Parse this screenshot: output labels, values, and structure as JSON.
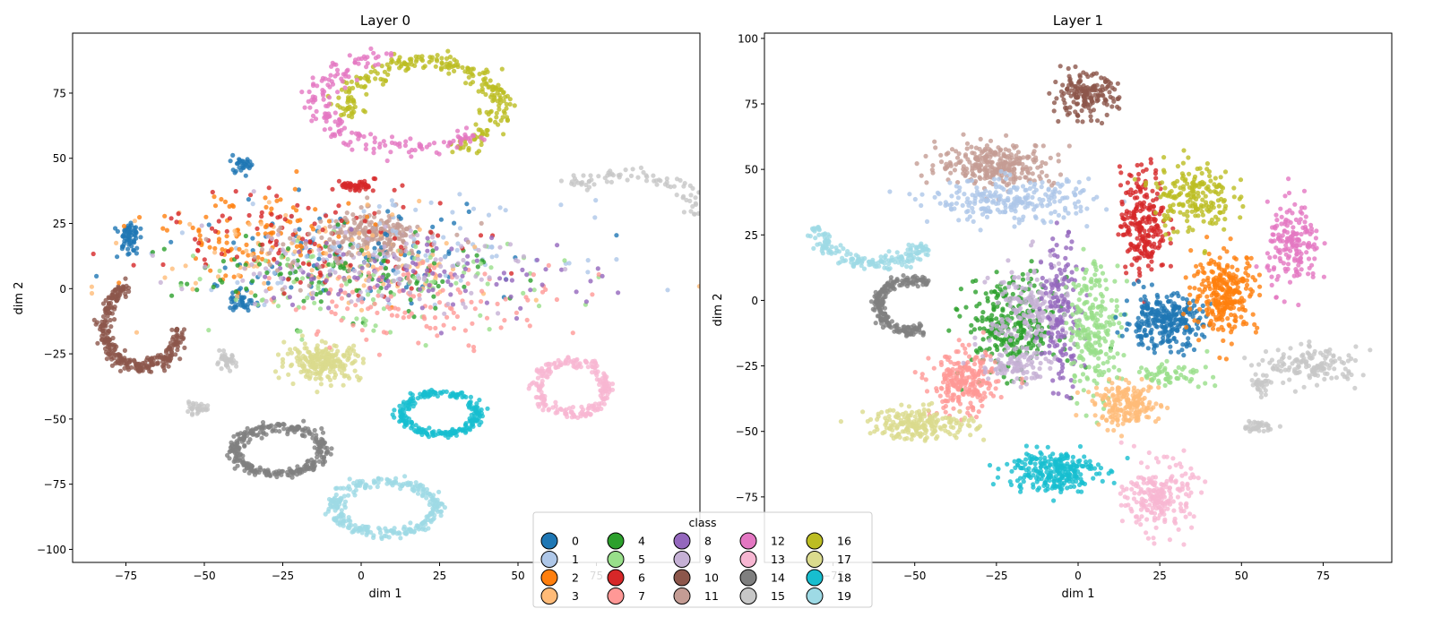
{
  "chart_data": [
    {
      "type": "scatter",
      "title": "Layer 0",
      "xlabel": "dim 1",
      "ylabel": "dim 2",
      "xlim": [
        -92,
        108
      ],
      "ylim": [
        -105,
        98
      ],
      "xticks": [
        -75,
        -50,
        -25,
        0,
        25,
        50,
        75
      ],
      "yticks": [
        -100,
        -75,
        -50,
        -25,
        0,
        25,
        50,
        75
      ],
      "grid": false,
      "legend": "shared, bottom-center",
      "clusters": [
        {
          "class": 10,
          "shape": "arc",
          "cx": -70,
          "cy": -14,
          "rx": 12,
          "ry": 16,
          "a0": 110,
          "a1": 355,
          "n": 300
        },
        {
          "class": 16,
          "shape": "arc",
          "cx": 20,
          "cy": 70,
          "rx": 24,
          "ry": 17,
          "a0": 290,
          "a1": 560,
          "n": 260
        },
        {
          "class": 12,
          "shape": "arc",
          "cx": 15,
          "cy": 72,
          "rx": 28,
          "ry": 18,
          "a0": 100,
          "a1": 320,
          "n": 180
        },
        {
          "class": 15,
          "shape": "arc",
          "cx": 84,
          "cy": 30,
          "rx": 22,
          "ry": 14,
          "a0": -10,
          "a1": 140,
          "n": 80
        },
        {
          "class": 15,
          "shape": "blob",
          "cx": -43,
          "cy": -28,
          "rx": 3,
          "ry": 3,
          "n": 40
        },
        {
          "class": 15,
          "shape": "blob",
          "cx": -53,
          "cy": -46,
          "rx": 4,
          "ry": 2,
          "n": 30
        },
        {
          "class": 17,
          "shape": "blob",
          "cx": -12,
          "cy": -28,
          "rx": 12,
          "ry": 7,
          "n": 230
        },
        {
          "class": 18,
          "shape": "arc",
          "cx": 25,
          "cy": -48,
          "rx": 12,
          "ry": 8,
          "a0": 0,
          "a1": 360,
          "n": 230
        },
        {
          "class": 13,
          "shape": "arc",
          "cx": 67,
          "cy": -38,
          "rx": 11,
          "ry": 10,
          "a0": 0,
          "a1": 360,
          "n": 220
        },
        {
          "class": 14,
          "shape": "arc",
          "cx": -26,
          "cy": -62,
          "rx": 14,
          "ry": 9,
          "a0": 0,
          "a1": 360,
          "n": 300
        },
        {
          "class": 19,
          "shape": "arc",
          "cx": 8,
          "cy": -84,
          "rx": 16,
          "ry": 10,
          "a0": 0,
          "a1": 360,
          "n": 280
        },
        {
          "class": 0,
          "shape": "blob",
          "cx": -74,
          "cy": 20,
          "rx": 3,
          "ry": 7,
          "n": 60
        },
        {
          "class": 0,
          "shape": "blob",
          "cx": -38,
          "cy": -5,
          "rx": 4,
          "ry": 5,
          "n": 40
        },
        {
          "class": 0,
          "shape": "blob",
          "cx": -38,
          "cy": 48,
          "rx": 4,
          "ry": 3,
          "n": 30
        },
        {
          "class": 6,
          "shape": "blob",
          "cx": -2,
          "cy": 39,
          "rx": 5,
          "ry": 2,
          "n": 45
        },
        {
          "class": 11,
          "shape": "blob",
          "cx": 5,
          "cy": 20,
          "rx": 15,
          "ry": 9,
          "n": 200
        },
        {
          "class": 0,
          "shape": "blob",
          "cx": -5,
          "cy": 15,
          "rx": 58,
          "ry": 18,
          "n": 90
        },
        {
          "class": 1,
          "shape": "blob",
          "cx": 10,
          "cy": 15,
          "rx": 55,
          "ry": 18,
          "n": 110
        },
        {
          "class": 2,
          "shape": "blob",
          "cx": -35,
          "cy": 20,
          "rx": 35,
          "ry": 18,
          "n": 110
        },
        {
          "class": 3,
          "shape": "blob",
          "cx": -10,
          "cy": 10,
          "rx": 55,
          "ry": 20,
          "n": 120
        },
        {
          "class": 4,
          "shape": "blob",
          "cx": -10,
          "cy": 5,
          "rx": 50,
          "ry": 15,
          "n": 110
        },
        {
          "class": 5,
          "shape": "blob",
          "cx": 5,
          "cy": 0,
          "rx": 55,
          "ry": 18,
          "n": 100
        },
        {
          "class": 6,
          "shape": "blob",
          "cx": -15,
          "cy": 20,
          "rx": 55,
          "ry": 20,
          "n": 110
        },
        {
          "class": 7,
          "shape": "blob",
          "cx": 20,
          "cy": -5,
          "rx": 45,
          "ry": 15,
          "n": 130
        },
        {
          "class": 8,
          "shape": "blob",
          "cx": 20,
          "cy": 5,
          "rx": 55,
          "ry": 15,
          "n": 100
        },
        {
          "class": 9,
          "shape": "blob",
          "cx": 0,
          "cy": 10,
          "rx": 55,
          "ry": 18,
          "n": 110
        },
        {
          "class": 11,
          "shape": "blob",
          "cx": -10,
          "cy": 15,
          "rx": 40,
          "ry": 15,
          "n": 50
        }
      ]
    },
    {
      "type": "scatter",
      "title": "Layer 1",
      "xlabel": "dim 1",
      "ylabel": "dim 2",
      "xlim": [
        -96,
        96
      ],
      "ylim": [
        -100,
        102
      ],
      "xticks": [
        -75,
        -50,
        -25,
        0,
        25,
        50,
        75
      ],
      "yticks": [
        -75,
        -50,
        -25,
        0,
        25,
        50,
        75,
        100
      ],
      "grid": false,
      "legend": "shared, bottom-center",
      "clusters": [
        {
          "class": 10,
          "shape": "blob",
          "cx": 2,
          "cy": 78,
          "rx": 10,
          "ry": 8,
          "n": 170
        },
        {
          "class": 11,
          "shape": "blob",
          "cx": -25,
          "cy": 52,
          "rx": 18,
          "ry": 8,
          "n": 280
        },
        {
          "class": 1,
          "shape": "blob",
          "cx": -20,
          "cy": 38,
          "rx": 25,
          "ry": 8,
          "n": 240
        },
        {
          "class": 19,
          "shape": "arc",
          "cx": -62,
          "cy": 28,
          "rx": 18,
          "ry": 14,
          "a0": 180,
          "a1": 330,
          "n": 170
        },
        {
          "class": 6,
          "shape": "blob",
          "cx": 20,
          "cy": 30,
          "rx": 7,
          "ry": 20,
          "n": 230
        },
        {
          "class": 16,
          "shape": "blob",
          "cx": 35,
          "cy": 40,
          "rx": 12,
          "ry": 14,
          "n": 190
        },
        {
          "class": 12,
          "shape": "blob",
          "cx": 66,
          "cy": 20,
          "rx": 8,
          "ry": 16,
          "n": 170
        },
        {
          "class": 14,
          "shape": "arc",
          "cx": -52,
          "cy": -2,
          "rx": 9,
          "ry": 10,
          "a0": 50,
          "a1": 300,
          "n": 220
        },
        {
          "class": 4,
          "shape": "blob",
          "cx": -20,
          "cy": -10,
          "rx": 14,
          "ry": 18,
          "n": 300
        },
        {
          "class": 9,
          "shape": "blob",
          "cx": -15,
          "cy": -5,
          "rx": 12,
          "ry": 20,
          "n": 200
        },
        {
          "class": 8,
          "shape": "blob",
          "cx": -5,
          "cy": -5,
          "rx": 6,
          "ry": 28,
          "n": 150
        },
        {
          "class": 5,
          "shape": "blob",
          "cx": 5,
          "cy": -10,
          "rx": 8,
          "ry": 25,
          "n": 230
        },
        {
          "class": 0,
          "shape": "blob",
          "cx": 26,
          "cy": -8,
          "rx": 12,
          "ry": 10,
          "n": 280
        },
        {
          "class": 2,
          "shape": "blob",
          "cx": 45,
          "cy": 3,
          "rx": 10,
          "ry": 15,
          "n": 280
        },
        {
          "class": 15,
          "shape": "blob",
          "cx": 72,
          "cy": -25,
          "rx": 14,
          "ry": 7,
          "n": 140
        },
        {
          "class": 15,
          "shape": "blob",
          "cx": 55,
          "cy": -48,
          "rx": 5,
          "ry": 2,
          "n": 40
        },
        {
          "class": 15,
          "shape": "blob",
          "cx": 56,
          "cy": -32,
          "rx": 3,
          "ry": 4,
          "n": 30
        },
        {
          "class": 7,
          "shape": "blob",
          "cx": -35,
          "cy": -32,
          "rx": 10,
          "ry": 12,
          "n": 240
        },
        {
          "class": 17,
          "shape": "blob",
          "cx": -48,
          "cy": -47,
          "rx": 16,
          "ry": 6,
          "n": 210
        },
        {
          "class": 3,
          "shape": "blob",
          "cx": 15,
          "cy": -40,
          "rx": 10,
          "ry": 8,
          "n": 190
        },
        {
          "class": 18,
          "shape": "blob",
          "cx": -8,
          "cy": -65,
          "rx": 14,
          "ry": 8,
          "n": 260
        },
        {
          "class": 13,
          "shape": "blob",
          "cx": 25,
          "cy": -75,
          "rx": 10,
          "ry": 13,
          "n": 220
        },
        {
          "class": 9,
          "shape": "blob",
          "cx": -20,
          "cy": -25,
          "rx": 10,
          "ry": 6,
          "n": 80
        },
        {
          "class": 5,
          "shape": "blob",
          "cx": 28,
          "cy": -28,
          "rx": 12,
          "ry": 4,
          "n": 60
        }
      ]
    }
  ],
  "legend": {
    "title": "class",
    "entries": [
      {
        "label": "0",
        "color": "#1f77b4"
      },
      {
        "label": "1",
        "color": "#aec7e8"
      },
      {
        "label": "2",
        "color": "#ff7f0e"
      },
      {
        "label": "3",
        "color": "#ffbb78"
      },
      {
        "label": "4",
        "color": "#2ca02c"
      },
      {
        "label": "5",
        "color": "#98df8a"
      },
      {
        "label": "6",
        "color": "#d62728"
      },
      {
        "label": "7",
        "color": "#ff9896"
      },
      {
        "label": "8",
        "color": "#9467bd"
      },
      {
        "label": "9",
        "color": "#c5b0d5"
      },
      {
        "label": "10",
        "color": "#8c564b"
      },
      {
        "label": "11",
        "color": "#c49c94"
      },
      {
        "label": "12",
        "color": "#e377c2"
      },
      {
        "label": "13",
        "color": "#f7b6d2"
      },
      {
        "label": "14",
        "color": "#7f7f7f"
      },
      {
        "label": "15",
        "color": "#c7c7c7"
      },
      {
        "label": "16",
        "color": "#bcbd22"
      },
      {
        "label": "17",
        "color": "#dbdb8d"
      },
      {
        "label": "18",
        "color": "#17becf"
      },
      {
        "label": "19",
        "color": "#9edae5"
      }
    ]
  }
}
